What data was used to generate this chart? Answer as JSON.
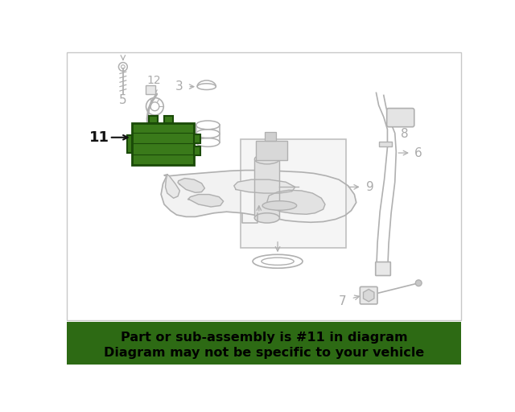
{
  "background_color": "#ffffff",
  "border_color": "#c8c8c8",
  "line_color": "#b0b0b0",
  "line_color2": "#c0c0c0",
  "green_module_fill": "#3a7a1a",
  "green_module_edge": "#1a4a08",
  "green_footer_color": "#2d6a14",
  "footer_text_color": "#000000",
  "label_color": "#aaaaaa",
  "highlight_line1": "Part or sub-assembly is #11 in diagram",
  "highlight_line2": "Diagram may not be specific to your vehicle",
  "font_size_footer": 11.5,
  "font_size_labels": 11,
  "font_size_11": 13
}
